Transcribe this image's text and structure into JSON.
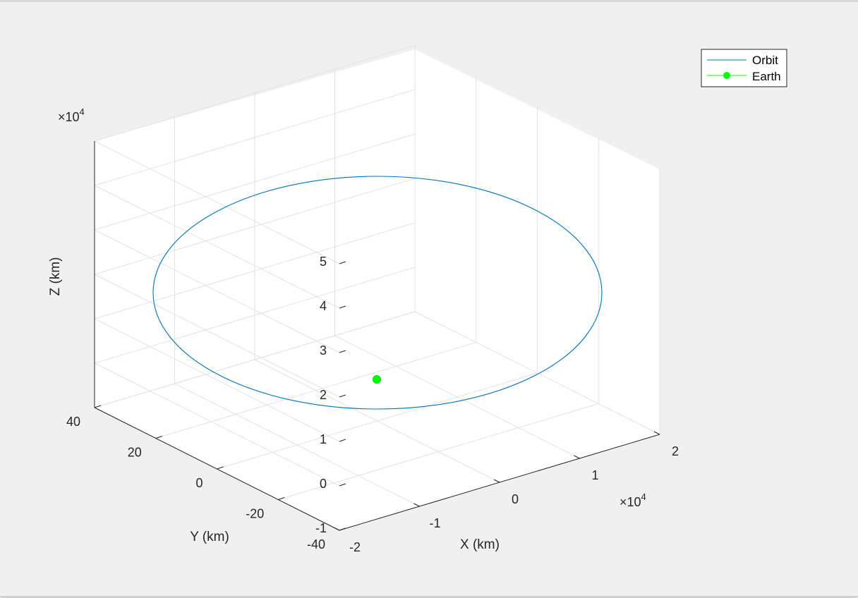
{
  "chart_data": {
    "type": "line3d",
    "xlabel": "X (km)",
    "ylabel": "Y (km)",
    "zlabel": "Z (km)",
    "xlim": [
      -2,
      2
    ],
    "ylim": [
      -40,
      40
    ],
    "zlim": [
      -1,
      5
    ],
    "x_multiplier": "×10",
    "x_multiplier_exp": "4",
    "z_multiplier": "×10",
    "z_multiplier_exp": "4",
    "x_ticks": [
      "-2",
      "-1",
      "0",
      "1",
      "2"
    ],
    "y_ticks": [
      "-40",
      "-20",
      "0",
      "20",
      "40"
    ],
    "z_ticks": [
      "-1",
      "0",
      "1",
      "2",
      "3",
      "4",
      "5"
    ],
    "grid": true,
    "legend_placement": "top-right",
    "series": [
      {
        "name": "Orbit",
        "color": "#0072bd",
        "description_values": {
          "x_range": [
            -1.84,
            1.85
          ],
          "z_range": [
            -1.4,
            3.7
          ]
        }
      },
      {
        "name": "Earth",
        "color": "#00ff00",
        "point": {
          "x": 0,
          "y": 0,
          "z": 0
        }
      }
    ]
  }
}
